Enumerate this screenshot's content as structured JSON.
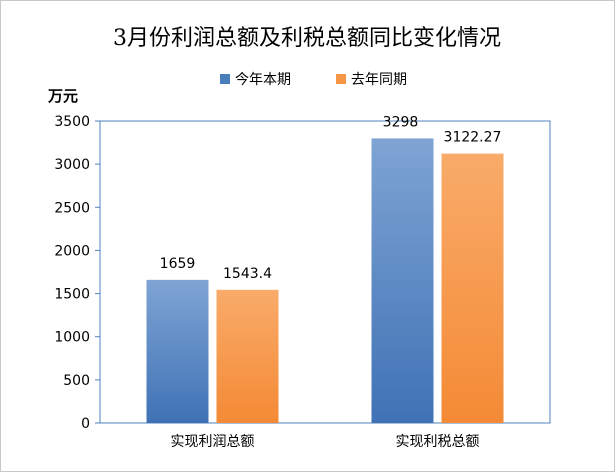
{
  "chart_data": {
    "type": "bar",
    "title": "3月份利润总额及利税总额同比变化情况",
    "ylabel": "万元",
    "xlabel": "",
    "categories": [
      "实现利润总额",
      "实现利税总额"
    ],
    "series": [
      {
        "name": "今年本期",
        "values": [
          1659,
          3298
        ],
        "value_labels": [
          "1659",
          "3298"
        ]
      },
      {
        "name": "去年同期",
        "values": [
          1543.4,
          3122.27
        ],
        "value_labels": [
          "1543.4",
          "3122.27"
        ]
      }
    ],
    "ylim": [
      0,
      3500
    ],
    "yticks": [
      "0",
      "500",
      "1000",
      "1500",
      "2000",
      "2500",
      "3000",
      "3500"
    ],
    "legend_position": "top-center",
    "grid": false,
    "colors": {
      "series_0": "#4a7ebb",
      "series_0_light": "#7fa4d4",
      "series_1": "#f79646",
      "series_1_light": "#f9ab6a",
      "axis": "#4f81bd",
      "text": "#000000"
    }
  }
}
